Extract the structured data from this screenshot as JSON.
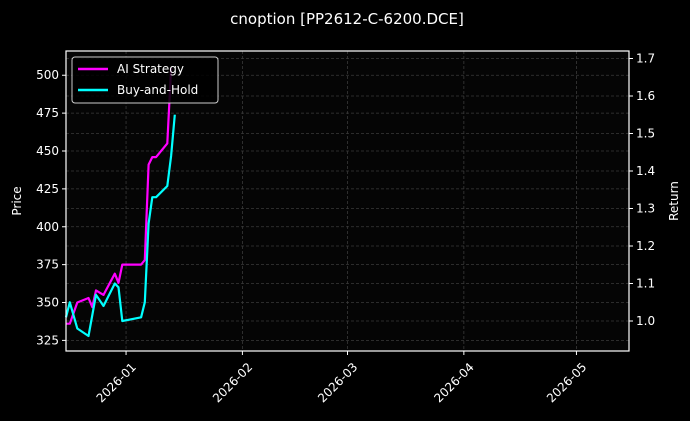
{
  "chart_data": {
    "type": "line",
    "title": "cnoption [PP2612-C-6200.DCE]",
    "xlabel": "",
    "ylabel": "Price",
    "ylabel_right": "Return",
    "x_tick_labels": [
      "2026-01",
      "2026-02",
      "2026-03",
      "2026-04",
      "2026-05"
    ],
    "x_range": [
      "2025-12-16",
      "2026-05-15"
    ],
    "y_ticks_left": [
      325,
      350,
      375,
      400,
      425,
      450,
      475,
      500
    ],
    "ylim_left": [
      318,
      516
    ],
    "y_ticks_right": [
      1.0,
      1.1,
      1.2,
      1.3,
      1.4,
      1.5,
      1.6,
      1.7
    ],
    "ylim_right": [
      0.92,
      1.72
    ],
    "grid": true,
    "legend_position": "upper left",
    "series": [
      {
        "name": "AI Strategy",
        "axis": "left",
        "color": "#ff00ff",
        "x": [
          "2025-12-16",
          "2025-12-17",
          "2025-12-19",
          "2025-12-22",
          "2025-12-23",
          "2025-12-24",
          "2025-12-26",
          "2025-12-29",
          "2025-12-30",
          "2025-12-31",
          "2026-01-05",
          "2026-01-06",
          "2026-01-07",
          "2026-01-08",
          "2026-01-09",
          "2026-01-12",
          "2026-01-13"
        ],
        "values": [
          336,
          336,
          350,
          353,
          347,
          358,
          355,
          369,
          363,
          375,
          375,
          378,
          441,
          446,
          446,
          455,
          505
        ]
      },
      {
        "name": "Buy-and-Hold",
        "axis": "right",
        "color": "#00ffff",
        "x": [
          "2025-12-16",
          "2025-12-17",
          "2025-12-19",
          "2025-12-22",
          "2025-12-24",
          "2025-12-26",
          "2025-12-29",
          "2025-12-30",
          "2025-12-31",
          "2026-01-05",
          "2026-01-06",
          "2026-01-07",
          "2026-01-08",
          "2026-01-09",
          "2026-01-12",
          "2026-01-13",
          "2026-01-14"
        ],
        "values": [
          1.01,
          1.05,
          0.98,
          0.96,
          1.07,
          1.04,
          1.1,
          1.09,
          1.0,
          1.01,
          1.05,
          1.26,
          1.33,
          1.33,
          1.36,
          1.44,
          1.55
        ]
      }
    ]
  },
  "colors": {
    "background": "#000000",
    "axes_face": "#050505",
    "grid": "#3a3a3a",
    "spine": "#ffffff",
    "text": "#ffffff"
  }
}
